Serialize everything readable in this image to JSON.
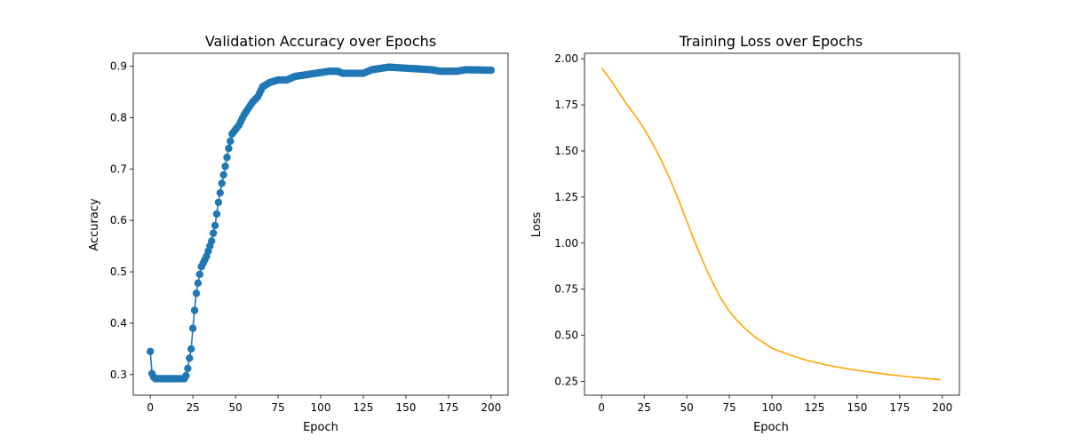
{
  "chart_data": [
    {
      "type": "line",
      "title": "Validation Accuracy over Epochs",
      "xlabel": "Epoch",
      "ylabel": "Accuracy",
      "xlim": [
        -10,
        210
      ],
      "ylim": [
        0.26,
        0.925
      ],
      "xticks": [
        0,
        25,
        50,
        75,
        100,
        125,
        150,
        175,
        200
      ],
      "yticks": [
        0.3,
        0.4,
        0.5,
        0.6,
        0.7,
        0.8,
        0.9
      ],
      "markers": true,
      "grid": false,
      "series": [
        {
          "color": "#1f77b4",
          "knots": [
            [
              0,
              0.345
            ],
            [
              1,
              0.302
            ],
            [
              2,
              0.295
            ],
            [
              3,
              0.292
            ],
            [
              20,
              0.292
            ],
            [
              21,
              0.298
            ],
            [
              22,
              0.312
            ],
            [
              23,
              0.332
            ],
            [
              24,
              0.35
            ],
            [
              25,
              0.39
            ],
            [
              26,
              0.425
            ],
            [
              27,
              0.458
            ],
            [
              28,
              0.478
            ],
            [
              29,
              0.495
            ],
            [
              30,
              0.51
            ],
            [
              33,
              0.53
            ],
            [
              36,
              0.56
            ],
            [
              38,
              0.59
            ],
            [
              40,
              0.635
            ],
            [
              42,
              0.672
            ],
            [
              44,
              0.705
            ],
            [
              46,
              0.74
            ],
            [
              48,
              0.768
            ],
            [
              52,
              0.785
            ],
            [
              55,
              0.805
            ],
            [
              60,
              0.83
            ],
            [
              63,
              0.84
            ],
            [
              66,
              0.86
            ],
            [
              70,
              0.868
            ],
            [
              75,
              0.873
            ],
            [
              80,
              0.873
            ],
            [
              85,
              0.88
            ],
            [
              95,
              0.885
            ],
            [
              105,
              0.89
            ],
            [
              110,
              0.89
            ],
            [
              113,
              0.886
            ],
            [
              125,
              0.886
            ],
            [
              130,
              0.893
            ],
            [
              140,
              0.898
            ],
            [
              150,
              0.896
            ],
            [
              165,
              0.893
            ],
            [
              170,
              0.89
            ],
            [
              180,
              0.89
            ],
            [
              185,
              0.893
            ],
            [
              200,
              0.892
            ]
          ]
        }
      ]
    },
    {
      "type": "line",
      "title": "Training Loss over Epochs",
      "xlabel": "Epoch",
      "ylabel": "Loss",
      "xlim": [
        -10,
        210
      ],
      "ylim": [
        0.175,
        2.03
      ],
      "xticks": [
        0,
        25,
        50,
        75,
        100,
        125,
        150,
        175,
        200
      ],
      "yticks": [
        0.25,
        0.5,
        0.75,
        1.0,
        1.25,
        1.5,
        1.75,
        2.0
      ],
      "ytick_labels": [
        "0.25",
        "0.50",
        "0.75",
        "1.00",
        "1.25",
        "1.50",
        "1.75",
        "2.00"
      ],
      "markers": false,
      "grid": false,
      "series": [
        {
          "color": "#ffa500",
          "knots": [
            [
              0,
              1.95
            ],
            [
              5,
              1.89
            ],
            [
              10,
              1.82
            ],
            [
              15,
              1.75
            ],
            [
              20,
              1.69
            ],
            [
              25,
              1.62
            ],
            [
              30,
              1.54
            ],
            [
              35,
              1.45
            ],
            [
              40,
              1.35
            ],
            [
              45,
              1.24
            ],
            [
              50,
              1.12
            ],
            [
              55,
              1.0
            ],
            [
              60,
              0.89
            ],
            [
              65,
              0.79
            ],
            [
              70,
              0.7
            ],
            [
              75,
              0.63
            ],
            [
              80,
              0.575
            ],
            [
              85,
              0.53
            ],
            [
              90,
              0.49
            ],
            [
              95,
              0.46
            ],
            [
              100,
              0.43
            ],
            [
              110,
              0.395
            ],
            [
              120,
              0.365
            ],
            [
              130,
              0.343
            ],
            [
              140,
              0.325
            ],
            [
              150,
              0.31
            ],
            [
              160,
              0.297
            ],
            [
              170,
              0.285
            ],
            [
              180,
              0.275
            ],
            [
              190,
              0.266
            ],
            [
              199,
              0.258
            ]
          ]
        }
      ]
    }
  ]
}
